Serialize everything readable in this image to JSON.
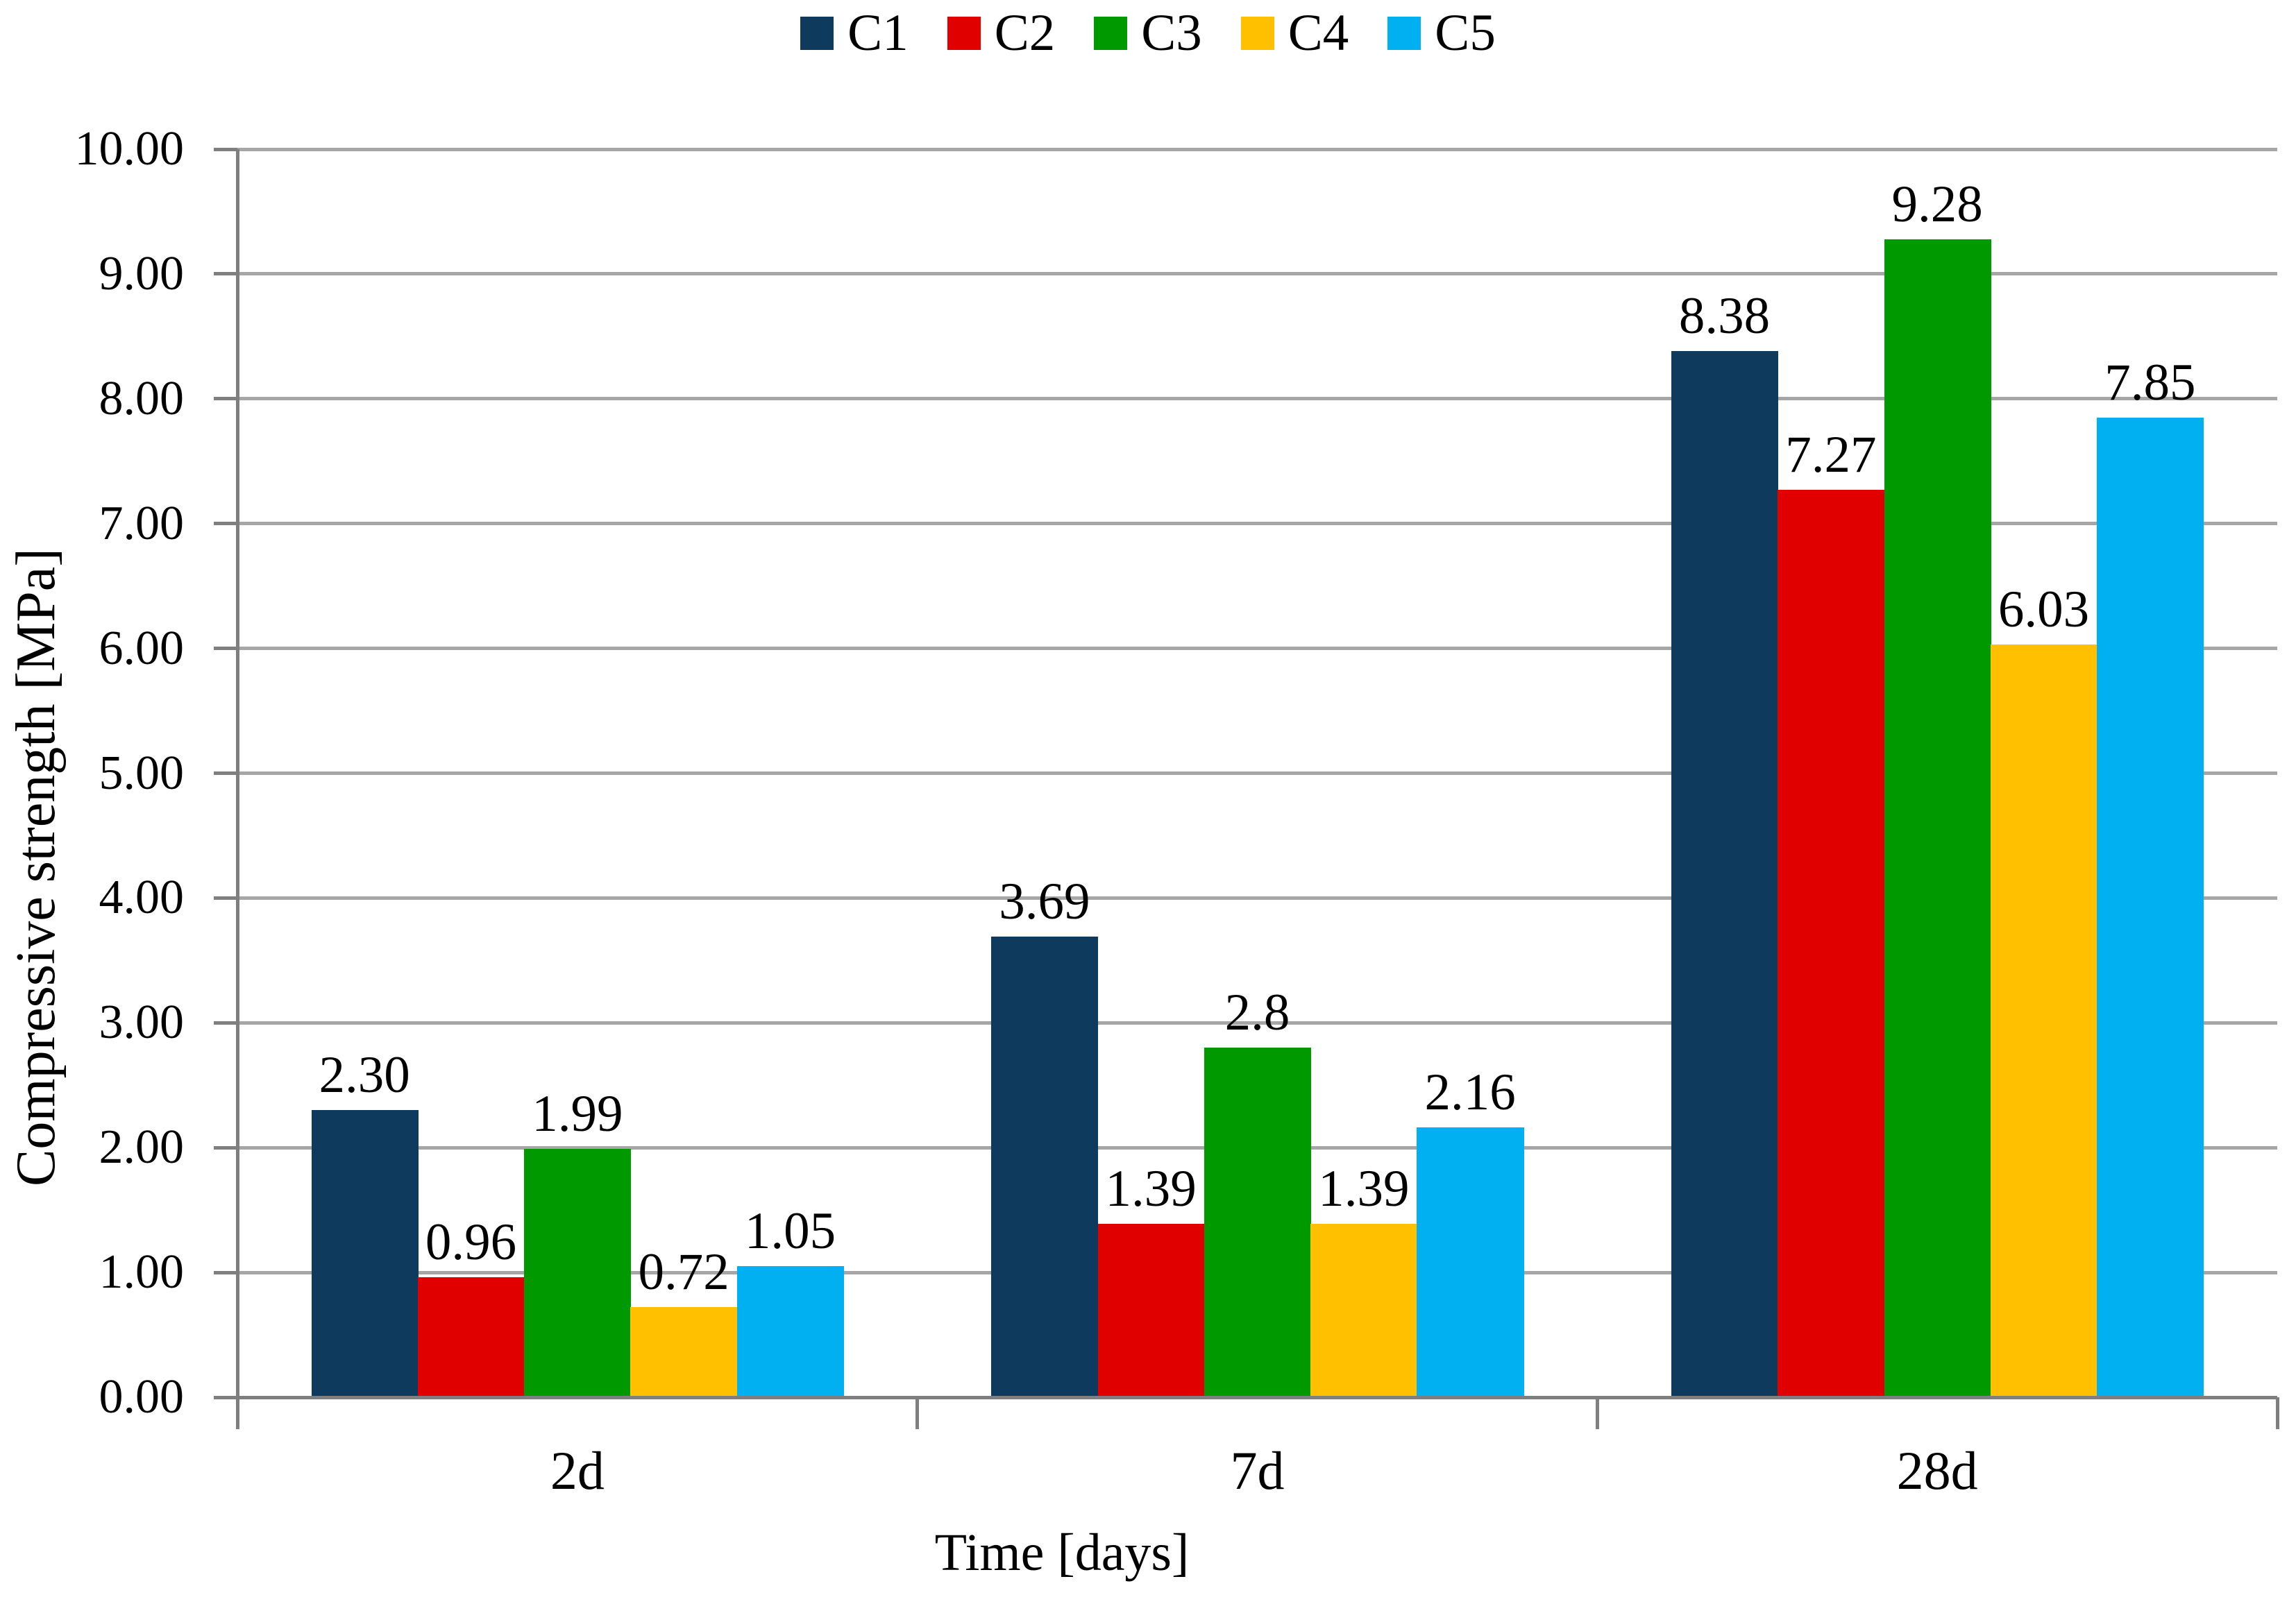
{
  "chart_data": {
    "type": "bar",
    "title": "",
    "xlabel": "Time [days]",
    "ylabel": "Compressive strength [MPa]",
    "categories": [
      "2d",
      "7d",
      "28d"
    ],
    "series": [
      {
        "name": "C1",
        "color": "#0e3a5e",
        "values": [
          2.3,
          3.69,
          8.38
        ],
        "labels": [
          "2.30",
          "3.69",
          "8.38"
        ]
      },
      {
        "name": "C2",
        "color": "#e00000",
        "values": [
          0.96,
          1.39,
          7.27
        ],
        "labels": [
          "0.96",
          "1.39",
          "7.27"
        ]
      },
      {
        "name": "C3",
        "color": "#009a00",
        "values": [
          1.99,
          2.8,
          9.28
        ],
        "labels": [
          "1.99",
          "2.8",
          "9.28"
        ]
      },
      {
        "name": "C4",
        "color": "#ffc000",
        "values": [
          0.72,
          1.39,
          6.03
        ],
        "labels": [
          "0.72",
          "1.39",
          "6.03"
        ]
      },
      {
        "name": "C5",
        "color": "#00b0f0",
        "values": [
          1.05,
          2.16,
          7.85
        ],
        "labels": [
          "1.05",
          "2.16",
          "7.85"
        ]
      }
    ],
    "ylim": [
      0,
      10
    ],
    "y_tick_labels": [
      "0.00",
      "1.00",
      "2.00",
      "3.00",
      "4.00",
      "5.00",
      "6.00",
      "7.00",
      "8.00",
      "9.00",
      "10.00"
    ],
    "grid": "horizontal-gridlines-on",
    "legend_position": "top-center"
  }
}
